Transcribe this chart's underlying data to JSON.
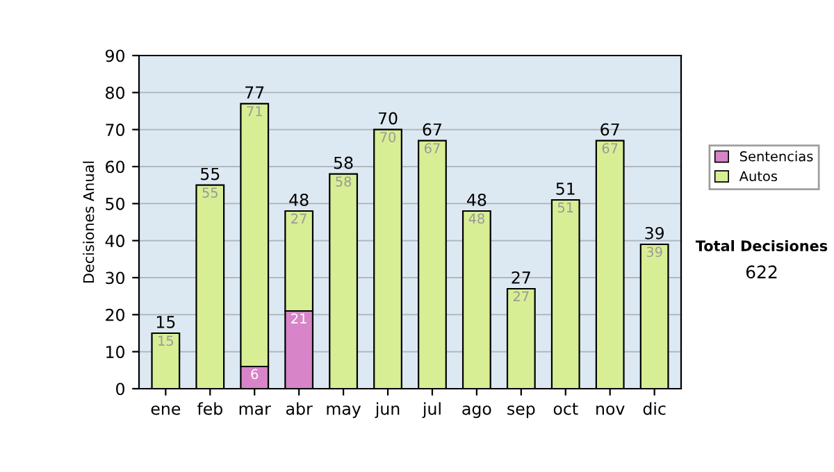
{
  "chart_data": {
    "type": "bar",
    "stacked": true,
    "ylabel": "Decisiones Anual",
    "categories": [
      "ene",
      "feb",
      "mar",
      "abr",
      "may",
      "jun",
      "jul",
      "ago",
      "sep",
      "oct",
      "nov",
      "dic"
    ],
    "series": [
      {
        "name": "Sentencias",
        "color": "#d884c8",
        "values": [
          null,
          null,
          6,
          21,
          null,
          null,
          null,
          null,
          null,
          null,
          null,
          null
        ]
      },
      {
        "name": "Autos",
        "color": "#d8ee94",
        "values": [
          15,
          55,
          71,
          27,
          58,
          70,
          67,
          48,
          27,
          51,
          67,
          39
        ]
      }
    ],
    "totals": [
      "15",
      "55",
      "77",
      "48",
      "58",
      "70",
      "67",
      "48",
      "27",
      "51",
      "67",
      "39"
    ],
    "data_labels": true,
    "ylim": [
      0,
      90
    ],
    "yticks": [
      0,
      10,
      20,
      30,
      40,
      50,
      60,
      70,
      80,
      90
    ],
    "grid": "y",
    "legend": "right",
    "annotations": [
      "Total Decisiones",
      "622"
    ]
  }
}
